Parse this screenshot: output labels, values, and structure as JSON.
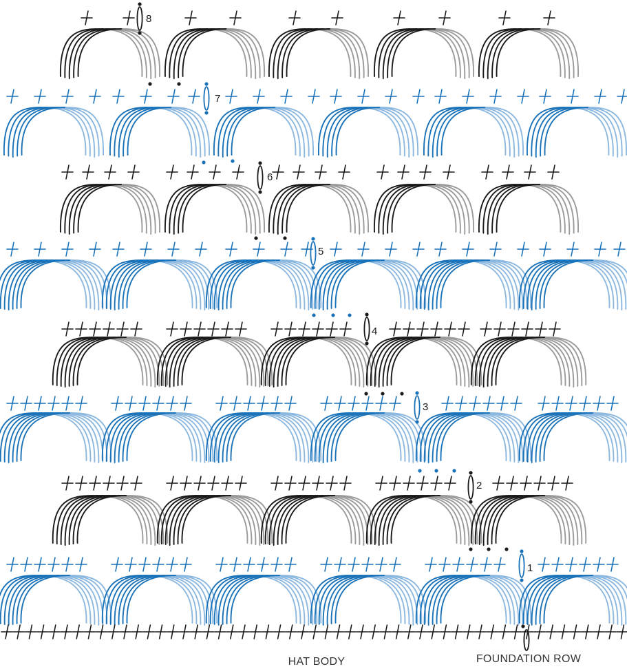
{
  "colors": {
    "black": "#1a1a1a",
    "gray": "#9a9a9a",
    "blue": "#1a72b8",
    "light_blue": "#8cb8e0",
    "background": "#ffffff"
  },
  "icons": [
    "crochet-stitch-cross-icon",
    "chain-stitch-dot-icon",
    "slip-stitch-oval-icon",
    "shell-stitch-arc-icon"
  ],
  "rows": [
    {
      "number": "8",
      "color": "black"
    },
    {
      "number": "7",
      "color": "blue"
    },
    {
      "number": "6",
      "color": "black"
    },
    {
      "number": "5",
      "color": "blue"
    },
    {
      "number": "4",
      "color": "black"
    },
    {
      "number": "3",
      "color": "blue"
    },
    {
      "number": "2",
      "color": "black"
    },
    {
      "number": "1",
      "color": "blue"
    }
  ],
  "captions": {
    "hat_body": "HAT BODY",
    "foundation_row": "FOUNDATION ROW"
  }
}
